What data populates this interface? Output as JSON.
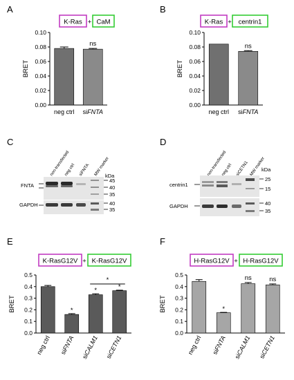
{
  "panels": {
    "A": {
      "label": "A",
      "box_left": "K-Ras",
      "plus": "+",
      "box_right": "CaM",
      "ylabel": "BRET",
      "yticks": [
        "0.00",
        "0.02",
        "0.04",
        "0.06",
        "0.08",
        "0.10"
      ],
      "annotation": "ns",
      "xlabels": [
        {
          "prefix": "",
          "italic": "neg ctrl"
        },
        {
          "prefix": "si",
          "italic": "FNTA"
        }
      ]
    },
    "B": {
      "label": "B",
      "box_left": "K-Ras",
      "plus": "+",
      "box_right": "centrin1",
      "ylabel": "BRET",
      "yticks": [
        "0.00",
        "0.02",
        "0.04",
        "0.06",
        "0.08",
        "0.10"
      ],
      "annotation": "ns",
      "xlabels": [
        {
          "prefix": "",
          "italic": "neg ctrl"
        },
        {
          "prefix": "si",
          "italic": "FNTA"
        }
      ]
    },
    "C": {
      "label": "C",
      "lanes": [
        "non-transfected",
        "neg ctrl",
        "siFNTA",
        "MW marker"
      ],
      "kda": "kDa",
      "top_label": "FNTA",
      "top_markers": [
        "45",
        "40",
        "35"
      ],
      "bottom_label": "GAPDH",
      "bottom_markers": [
        "40",
        "35"
      ]
    },
    "D": {
      "label": "D",
      "lanes": [
        "non-transfected",
        "neg ctrl",
        "siCETN1",
        "MW marker"
      ],
      "kda": "kDa",
      "top_label": "centrin1",
      "top_markers": [
        "25",
        "15"
      ],
      "bottom_label": "GAPDH",
      "bottom_markers": [
        "40",
        "35"
      ]
    },
    "E": {
      "label": "E",
      "box_left": "K-RasG12V",
      "plus": "+",
      "box_right": "K-RasG12V",
      "ylabel": "BRET",
      "yticks": [
        "0.0",
        "0.1",
        "0.2",
        "0.3",
        "0.4",
        "0.5"
      ],
      "star": "*",
      "xlabels": [
        {
          "prefix": "",
          "italic": "neg ctrl"
        },
        {
          "prefix": "si",
          "italic": "FNTA"
        },
        {
          "prefix": "si",
          "italic": "CALM1"
        },
        {
          "prefix": "si",
          "italic": "CETN1"
        }
      ]
    },
    "F": {
      "label": "F",
      "box_left": "H-RasG12V",
      "plus": "+",
      "box_right": "H-RasG12V",
      "ylabel": "BRET",
      "yticks": [
        "0.0",
        "0.1",
        "0.2",
        "0.3",
        "0.4",
        "0.5"
      ],
      "star": "*",
      "annotation": "ns",
      "xlabels": [
        {
          "prefix": "",
          "italic": "neg ctrl"
        },
        {
          "prefix": "si",
          "italic": "FNTA"
        },
        {
          "prefix": "si",
          "italic": "CALM1"
        },
        {
          "prefix": "si",
          "italic": "CETN1"
        }
      ]
    }
  },
  "colors": {
    "bar_dark": "#707070",
    "bar_mid": "#8a8a8a",
    "bar_light": "#a6a6a6",
    "box_magenta": "#c23bc2",
    "box_green": "#33cc33"
  },
  "chart_data": [
    {
      "panel": "A",
      "type": "bar",
      "categories": [
        "neg ctrl",
        "siFNTA"
      ],
      "values": [
        0.078,
        0.077
      ],
      "errors": [
        0.002,
        0.001
      ],
      "ylabel": "BRET",
      "ylim": [
        0,
        0.1
      ],
      "significance": [
        "",
        "ns"
      ]
    },
    {
      "panel": "B",
      "type": "bar",
      "categories": [
        "neg ctrl",
        "siFNTA"
      ],
      "values": [
        0.084,
        0.074
      ],
      "errors": [
        0.0,
        0.001
      ],
      "ylabel": "BRET",
      "ylim": [
        0,
        0.1
      ],
      "significance": [
        "",
        "ns"
      ]
    },
    {
      "panel": "E",
      "type": "bar",
      "categories": [
        "neg ctrl",
        "siFNTA",
        "siCALM1",
        "siCETN1"
      ],
      "values": [
        0.4,
        0.16,
        0.33,
        0.365
      ],
      "errors": [
        0.01,
        0.007,
        0.008,
        0.004
      ],
      "ylabel": "BRET",
      "ylim": [
        0,
        0.5
      ],
      "significance": [
        "",
        "*",
        "*",
        "*"
      ],
      "bracket": {
        "between": [
          "siCALM1",
          "siCETN1"
        ],
        "label": "*"
      }
    },
    {
      "panel": "F",
      "type": "bar",
      "categories": [
        "neg ctrl",
        "siFNTA",
        "siCALM1",
        "siCETN1"
      ],
      "values": [
        0.445,
        0.175,
        0.425,
        0.415
      ],
      "errors": [
        0.015,
        0.003,
        0.01,
        0.008
      ],
      "ylabel": "BRET",
      "ylim": [
        0,
        0.5
      ],
      "significance": [
        "",
        "*",
        "ns",
        "ns"
      ]
    }
  ]
}
